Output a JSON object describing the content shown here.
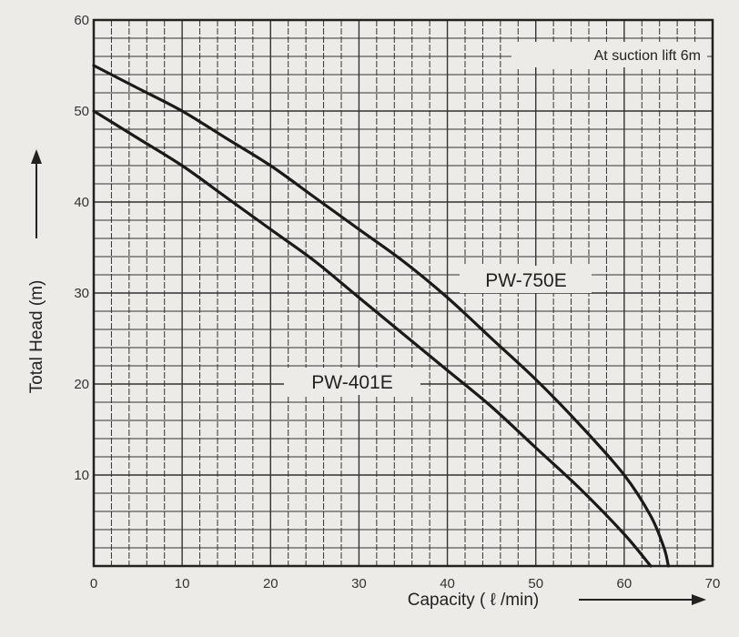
{
  "chart_data": {
    "type": "line",
    "xlabel": "Capacity ( ℓ /min)",
    "ylabel": "Total Head (m)",
    "xlim": [
      0,
      70
    ],
    "ylim": [
      0,
      60
    ],
    "x_ticks": [
      "0",
      "10",
      "20",
      "30",
      "40",
      "50",
      "60",
      "70"
    ],
    "y_ticks": [
      "10",
      "20",
      "30",
      "40",
      "50",
      "60"
    ],
    "grid": true,
    "annotation": "At suction lift 6m",
    "series": [
      {
        "name": "PW-750E",
        "points": [
          [
            0,
            55
          ],
          [
            5,
            52.5
          ],
          [
            10,
            50
          ],
          [
            15,
            47
          ],
          [
            20,
            44
          ],
          [
            25,
            40.5
          ],
          [
            30,
            37
          ],
          [
            35,
            33.5
          ],
          [
            40,
            29.5
          ],
          [
            45,
            25
          ],
          [
            50,
            20.5
          ],
          [
            55,
            15.5
          ],
          [
            60,
            10
          ],
          [
            63,
            5.5
          ],
          [
            64.5,
            2
          ],
          [
            65,
            0
          ]
        ]
      },
      {
        "name": "PW-401E",
        "points": [
          [
            0,
            50
          ],
          [
            5,
            47
          ],
          [
            10,
            44
          ],
          [
            15,
            40.5
          ],
          [
            20,
            37
          ],
          [
            25,
            33.5
          ],
          [
            30,
            29.5
          ],
          [
            35,
            25.5
          ],
          [
            40,
            21.5
          ],
          [
            45,
            17.5
          ],
          [
            50,
            13
          ],
          [
            55,
            8.5
          ],
          [
            60,
            3.5
          ],
          [
            63,
            0
          ]
        ]
      }
    ]
  }
}
